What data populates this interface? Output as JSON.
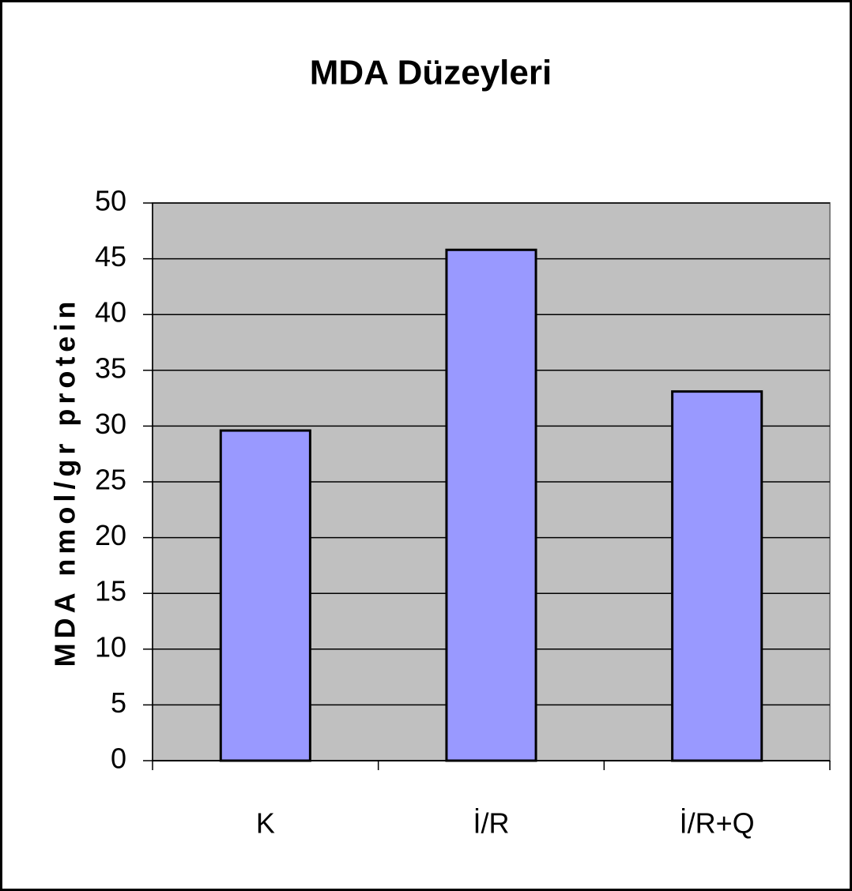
{
  "chart_data": {
    "type": "bar",
    "title": "MDA Düzeyleri",
    "y_label": "MDA nmol/gr protein",
    "categories": [
      "K",
      "İ/R",
      "İ/R+Q"
    ],
    "values": [
      29.6,
      45.8,
      33.1
    ],
    "color": "#9999ff",
    "ylim": [
      0,
      50
    ],
    "yticks": [
      0,
      5,
      10,
      15,
      20,
      25,
      30,
      35,
      40,
      45,
      50
    ],
    "grid": true
  }
}
